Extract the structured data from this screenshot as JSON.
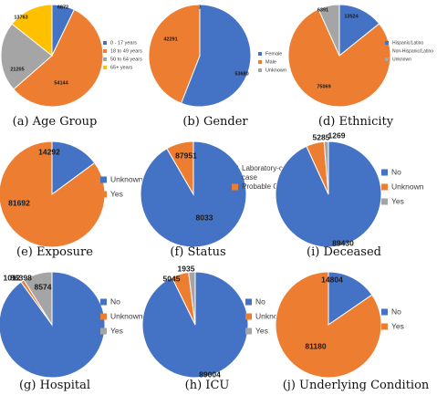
{
  "palette": {
    "blue": "#4472C4",
    "orange": "#ED7D31",
    "gray": "#A5A5A5",
    "yellow": "#FFC000"
  },
  "chart_data": [
    {
      "type": "pie",
      "caption": "(a) Age Group",
      "slices": [
        {
          "label": "0 - 17 years",
          "value": 6872,
          "color": "#4472C4"
        },
        {
          "label": "18 to 49 years",
          "value": 54144,
          "color": "#ED7D31"
        },
        {
          "label": "50 to 64 years",
          "value": 21205,
          "color": "#A5A5A5"
        },
        {
          "label": "65+ years",
          "value": 13763,
          "color": "#FFC000"
        }
      ]
    },
    {
      "type": "pie",
      "caption": "(b) Gender",
      "slices": [
        {
          "label": "Female",
          "value": 53680,
          "color": "#4472C4"
        },
        {
          "label": "Male",
          "value": 42291,
          "color": "#ED7D31"
        },
        {
          "label": "Unknown",
          "value": 3,
          "color": "#A5A5A5"
        }
      ]
    },
    {
      "type": "pie",
      "caption": "(d) Ethnicity",
      "slices": [
        {
          "label": "Hispanic/Latino",
          "value": 13524,
          "color": "#4472C4"
        },
        {
          "label": "Non-Hispanic/Latino",
          "value": 75069,
          "color": "#ED7D31"
        },
        {
          "label": "Unknown",
          "value": 6391,
          "color": "#A5A5A5"
        }
      ]
    },
    {
      "type": "pie",
      "caption": "(e) Exposure",
      "slices": [
        {
          "label": "Unknown",
          "value": 14292,
          "color": "#4472C4"
        },
        {
          "label": "Yes",
          "value": 81692,
          "color": "#ED7D31"
        }
      ]
    },
    {
      "type": "pie",
      "caption": "(f) Status",
      "slices": [
        {
          "label": "Laboratory-confirmed case",
          "value": 87951,
          "color": "#4472C4"
        },
        {
          "label": "Probable Case",
          "value": 8033,
          "color": "#ED7D31"
        }
      ]
    },
    {
      "type": "pie",
      "caption": "(i) Deceased",
      "slices": [
        {
          "label": "No",
          "value": 89430,
          "color": "#4472C4"
        },
        {
          "label": "Unknown",
          "value": 5285,
          "color": "#ED7D31"
        },
        {
          "label": "Yes",
          "value": 1269,
          "color": "#A5A5A5"
        }
      ]
    },
    {
      "type": "pie",
      "caption": "(g) Hospital",
      "slices": [
        {
          "label": "No",
          "value": 86398,
          "color": "#4472C4"
        },
        {
          "label": "Unknown",
          "value": 1012,
          "color": "#ED7D31"
        },
        {
          "label": "Yes",
          "value": 8574,
          "color": "#A5A5A5"
        }
      ]
    },
    {
      "type": "pie",
      "caption": "(h) ICU",
      "slices": [
        {
          "label": "No",
          "value": 89004,
          "color": "#4472C4"
        },
        {
          "label": "Unknown",
          "value": 5045,
          "color": "#ED7D31"
        },
        {
          "label": "Yes",
          "value": 1935,
          "color": "#A5A5A5"
        }
      ]
    },
    {
      "type": "pie",
      "caption": "(j) Underlying Condition",
      "slices": [
        {
          "label": "No",
          "value": 14804,
          "color": "#4472C4"
        },
        {
          "label": "Yes",
          "value": 81180,
          "color": "#ED7D31"
        }
      ]
    }
  ]
}
